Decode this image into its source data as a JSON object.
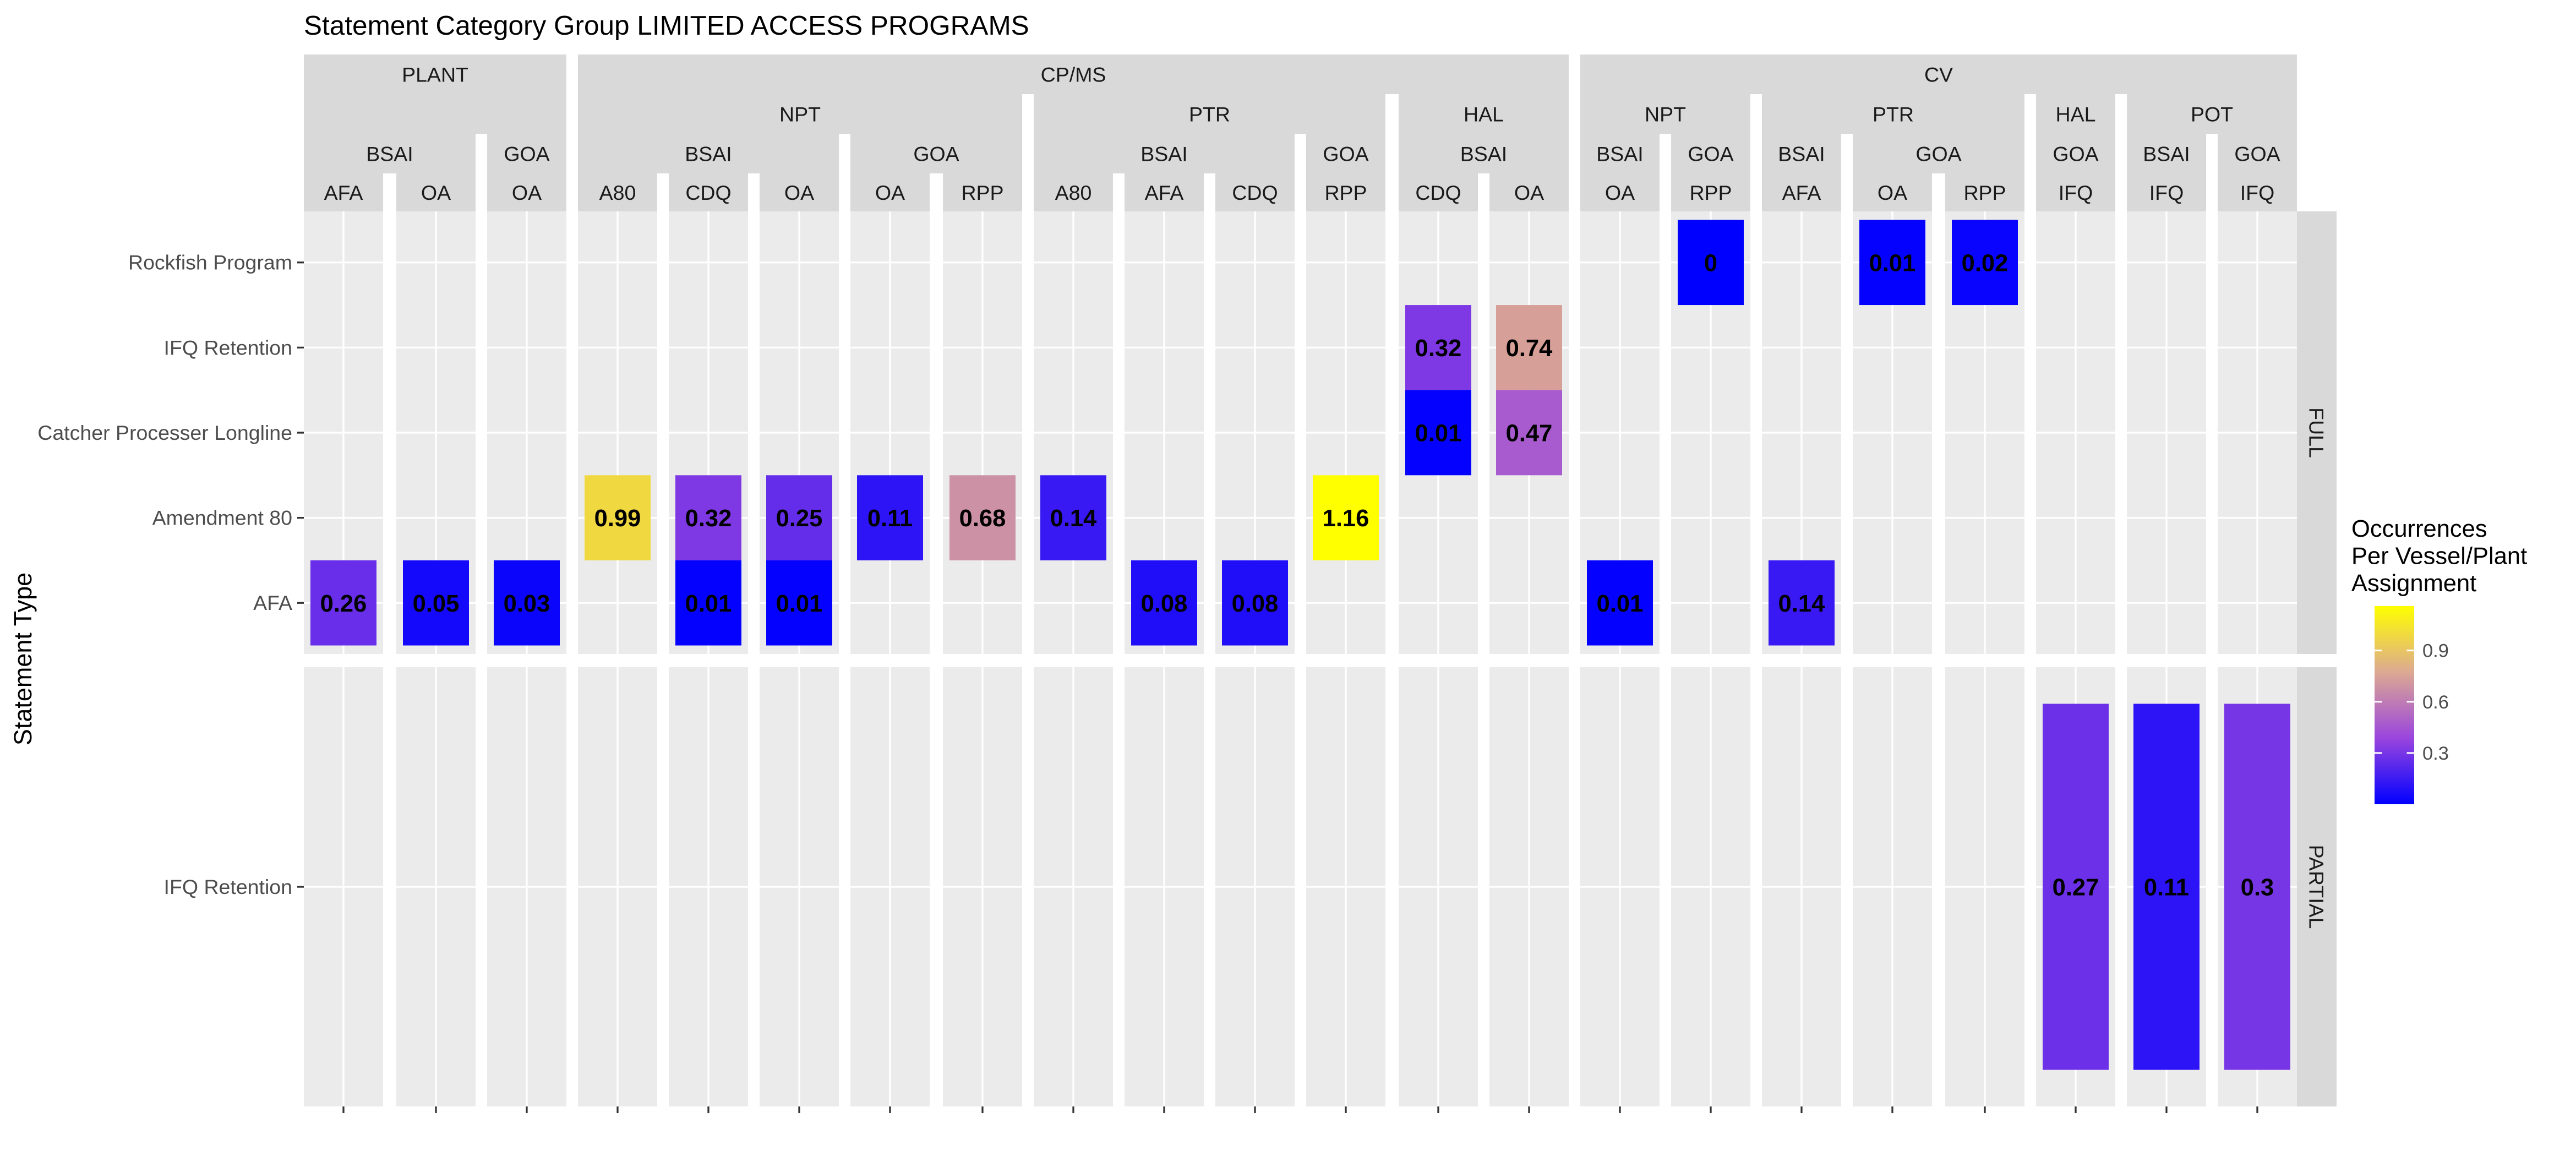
{
  "chart_data": {
    "type": "heatmap",
    "title": "Statement Category Group LIMITED ACCESS PROGRAMS",
    "ylabel": "Statement Type",
    "legend": {
      "title": [
        "Occurrences",
        "Per Vessel/Plant",
        "Assignment"
      ],
      "ticks": [
        0.3,
        0.6,
        0.9
      ],
      "tick_labels": [
        "0.3",
        "0.6",
        "0.9"
      ],
      "range": [
        0,
        1.16
      ],
      "colors": [
        "#0000ff",
        "#9a45de",
        "#dca992",
        "#ffff00"
      ],
      "placement": "right"
    },
    "facet_cols": [
      {
        "group": "PLANT",
        "sub": "",
        "region": "BSAI",
        "prog": "AFA"
      },
      {
        "group": "PLANT",
        "sub": "",
        "region": "BSAI",
        "prog": "OA"
      },
      {
        "group": "PLANT",
        "sub": "",
        "region": "GOA",
        "prog": "OA"
      },
      {
        "group": "CP/MS",
        "sub": "NPT",
        "region": "BSAI",
        "prog": "A80"
      },
      {
        "group": "CP/MS",
        "sub": "NPT",
        "region": "BSAI",
        "prog": "CDQ"
      },
      {
        "group": "CP/MS",
        "sub": "NPT",
        "region": "BSAI",
        "prog": "OA"
      },
      {
        "group": "CP/MS",
        "sub": "NPT",
        "region": "GOA",
        "prog": "OA"
      },
      {
        "group": "CP/MS",
        "sub": "NPT",
        "region": "GOA",
        "prog": "RPP"
      },
      {
        "group": "CP/MS",
        "sub": "PTR",
        "region": "BSAI",
        "prog": "A80"
      },
      {
        "group": "CP/MS",
        "sub": "PTR",
        "region": "BSAI",
        "prog": "AFA"
      },
      {
        "group": "CP/MS",
        "sub": "PTR",
        "region": "BSAI",
        "prog": "CDQ"
      },
      {
        "group": "CP/MS",
        "sub": "PTR",
        "region": "GOA",
        "prog": "RPP"
      },
      {
        "group": "CP/MS",
        "sub": "HAL",
        "region": "BSAI",
        "prog": "CDQ"
      },
      {
        "group": "CP/MS",
        "sub": "HAL",
        "region": "BSAI",
        "prog": "OA"
      },
      {
        "group": "CV",
        "sub": "NPT",
        "region": "BSAI",
        "prog": "OA"
      },
      {
        "group": "CV",
        "sub": "NPT",
        "region": "GOA",
        "prog": "RPP"
      },
      {
        "group": "CV",
        "sub": "PTR",
        "region": "BSAI",
        "prog": "AFA"
      },
      {
        "group": "CV",
        "sub": "PTR",
        "region": "GOA",
        "prog": "OA"
      },
      {
        "group": "CV",
        "sub": "PTR",
        "region": "GOA",
        "prog": "RPP"
      },
      {
        "group": "CV",
        "sub": "HAL",
        "region": "GOA",
        "prog": "IFQ"
      },
      {
        "group": "CV",
        "sub": "POT",
        "region": "BSAI",
        "prog": "IFQ"
      },
      {
        "group": "CV",
        "sub": "POT",
        "region": "GOA",
        "prog": "IFQ"
      }
    ],
    "facet_rows": [
      {
        "name": "FULL",
        "categories": [
          "AFA",
          "Amendment 80",
          "Catcher Processer Longline",
          "IFQ Retention",
          "Rockfish Program"
        ]
      },
      {
        "name": "PARTIAL",
        "categories": [
          "IFQ Retention"
        ]
      }
    ],
    "cells": [
      {
        "row": "FULL",
        "col": 0,
        "y": "AFA",
        "value": 0.26,
        "label": "0.26"
      },
      {
        "row": "FULL",
        "col": 1,
        "y": "AFA",
        "value": 0.05,
        "label": "0.05"
      },
      {
        "row": "FULL",
        "col": 2,
        "y": "AFA",
        "value": 0.03,
        "label": "0.03"
      },
      {
        "row": "FULL",
        "col": 3,
        "y": "Amendment 80",
        "value": 0.99,
        "label": "0.99"
      },
      {
        "row": "FULL",
        "col": 4,
        "y": "Amendment 80",
        "value": 0.32,
        "label": "0.32"
      },
      {
        "row": "FULL",
        "col": 4,
        "y": "AFA",
        "value": 0.01,
        "label": "0.01"
      },
      {
        "row": "FULL",
        "col": 5,
        "y": "Amendment 80",
        "value": 0.25,
        "label": "0.25"
      },
      {
        "row": "FULL",
        "col": 5,
        "y": "AFA",
        "value": 0.01,
        "label": "0.01"
      },
      {
        "row": "FULL",
        "col": 6,
        "y": "Amendment 80",
        "value": 0.11,
        "label": "0.11"
      },
      {
        "row": "FULL",
        "col": 7,
        "y": "Amendment 80",
        "value": 0.68,
        "label": "0.68"
      },
      {
        "row": "FULL",
        "col": 8,
        "y": "Amendment 80",
        "value": 0.14,
        "label": "0.14"
      },
      {
        "row": "FULL",
        "col": 9,
        "y": "AFA",
        "value": 0.08,
        "label": "0.08"
      },
      {
        "row": "FULL",
        "col": 10,
        "y": "AFA",
        "value": 0.08,
        "label": "0.08"
      },
      {
        "row": "FULL",
        "col": 11,
        "y": "Amendment 80",
        "value": 1.16,
        "label": "1.16"
      },
      {
        "row": "FULL",
        "col": 12,
        "y": "IFQ Retention",
        "value": 0.32,
        "label": "0.32"
      },
      {
        "row": "FULL",
        "col": 12,
        "y": "Catcher Processer Longline",
        "value": 0.01,
        "label": "0.01"
      },
      {
        "row": "FULL",
        "col": 13,
        "y": "IFQ Retention",
        "value": 0.74,
        "label": "0.74"
      },
      {
        "row": "FULL",
        "col": 13,
        "y": "Catcher Processer Longline",
        "value": 0.47,
        "label": "0.47"
      },
      {
        "row": "FULL",
        "col": 14,
        "y": "AFA",
        "value": 0.01,
        "label": "0.01"
      },
      {
        "row": "FULL",
        "col": 15,
        "y": "Rockfish Program",
        "value": 0.0,
        "label": "0"
      },
      {
        "row": "FULL",
        "col": 16,
        "y": "AFA",
        "value": 0.14,
        "label": "0.14"
      },
      {
        "row": "FULL",
        "col": 17,
        "y": "Rockfish Program",
        "value": 0.01,
        "label": "0.01"
      },
      {
        "row": "FULL",
        "col": 18,
        "y": "Rockfish Program",
        "value": 0.02,
        "label": "0.02"
      },
      {
        "row": "PARTIAL",
        "col": 19,
        "y": "IFQ Retention",
        "value": 0.27,
        "label": "0.27"
      },
      {
        "row": "PARTIAL",
        "col": 20,
        "y": "IFQ Retention",
        "value": 0.11,
        "label": "0.11"
      },
      {
        "row": "PARTIAL",
        "col": 21,
        "y": "IFQ Retention",
        "value": 0.3,
        "label": "0.3"
      }
    ],
    "grid": true
  }
}
